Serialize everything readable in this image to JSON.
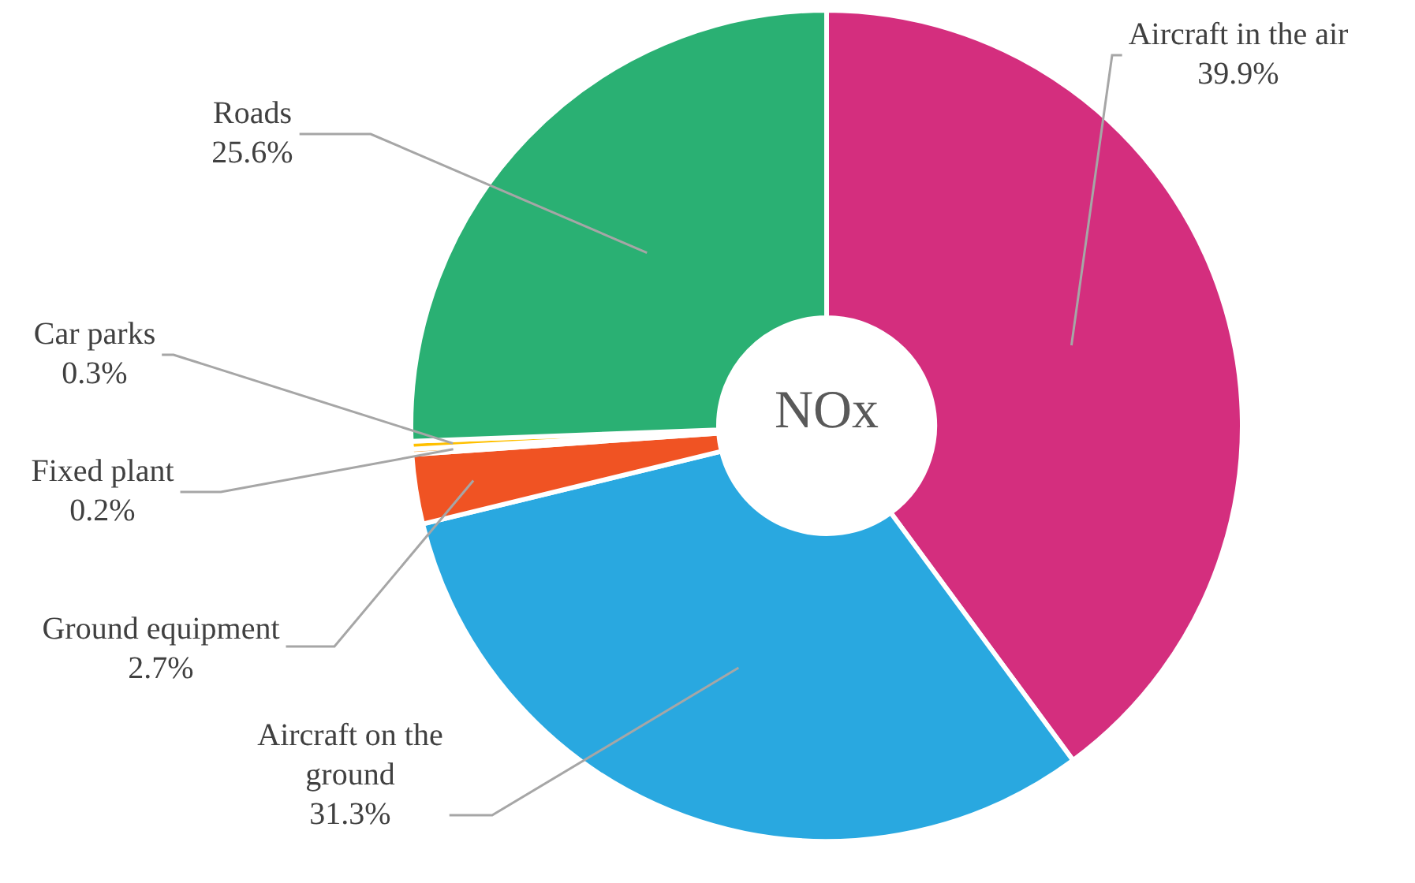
{
  "chart_data": {
    "type": "donut",
    "title": "NOx",
    "categories": [
      "Aircraft in the air",
      "Aircraft on the ground",
      "Ground equipment",
      "Fixed plant",
      "Car parks",
      "Roads"
    ],
    "values": [
      39.9,
      31.3,
      2.7,
      0.2,
      0.3,
      25.6
    ],
    "value_labels": [
      "39.9%",
      "31.3%",
      "2.7%",
      "0.2%",
      "0.3%",
      "25.6%"
    ],
    "colors": [
      "#d42e7e",
      "#29a8e0",
      "#f05323",
      "#f7941d",
      "#ffc000",
      "#2ab073"
    ],
    "legend": false
  }
}
